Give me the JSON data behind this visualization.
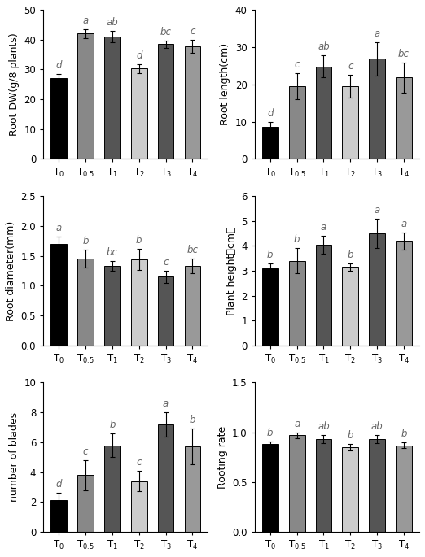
{
  "subplots": [
    {
      "ylabel": "Root DW(g/8 plants)",
      "ylim": [
        0,
        50
      ],
      "yticks": [
        0,
        10,
        20,
        30,
        40,
        50
      ],
      "values": [
        27.0,
        42.0,
        41.0,
        30.3,
        38.5,
        37.8
      ],
      "errors": [
        1.5,
        1.5,
        2.0,
        1.5,
        1.2,
        2.2
      ],
      "letters": [
        "d",
        "a",
        "ab",
        "d",
        "bc",
        "c"
      ],
      "colors": [
        "#000000",
        "#888888",
        "#555555",
        "#cccccc",
        "#555555",
        "#999999"
      ]
    },
    {
      "ylabel": "Root length(cm)",
      "ylim": [
        0,
        40
      ],
      "yticks": [
        0,
        10,
        20,
        30,
        40
      ],
      "values": [
        8.5,
        19.5,
        24.8,
        19.5,
        26.8,
        21.8
      ],
      "errors": [
        1.5,
        3.5,
        3.0,
        3.0,
        4.5,
        4.0
      ],
      "letters": [
        "d",
        "c",
        "ab",
        "c",
        "a",
        "bc"
      ],
      "colors": [
        "#000000",
        "#888888",
        "#555555",
        "#cccccc",
        "#555555",
        "#999999"
      ]
    },
    {
      "ylabel": "Root diameter(mm)",
      "ylim": [
        0.0,
        2.5
      ],
      "yticks": [
        0.0,
        0.5,
        1.0,
        1.5,
        2.0,
        2.5
      ],
      "values": [
        1.7,
        1.45,
        1.33,
        1.44,
        1.15,
        1.33
      ],
      "errors": [
        0.12,
        0.15,
        0.08,
        0.18,
        0.1,
        0.12
      ],
      "letters": [
        "a",
        "b",
        "bc",
        "b",
        "c",
        "bc"
      ],
      "colors": [
        "#000000",
        "#888888",
        "#555555",
        "#cccccc",
        "#555555",
        "#999999"
      ]
    },
    {
      "ylabel": "Plant height（cm）",
      "ylim": [
        0,
        6
      ],
      "yticks": [
        0,
        1,
        2,
        3,
        4,
        5,
        6
      ],
      "values": [
        3.1,
        3.4,
        4.05,
        3.15,
        4.5,
        4.2
      ],
      "errors": [
        0.18,
        0.5,
        0.35,
        0.15,
        0.6,
        0.35
      ],
      "letters": [
        "b",
        "b",
        "a",
        "b",
        "a",
        "a"
      ],
      "colors": [
        "#000000",
        "#888888",
        "#555555",
        "#cccccc",
        "#555555",
        "#999999"
      ]
    },
    {
      "ylabel": "number of blades",
      "ylim": [
        0,
        10
      ],
      "yticks": [
        0,
        2,
        4,
        6,
        8,
        10
      ],
      "values": [
        2.1,
        3.8,
        5.8,
        3.4,
        7.2,
        5.7
      ],
      "errors": [
        0.5,
        1.0,
        0.8,
        0.7,
        0.8,
        1.2
      ],
      "letters": [
        "d",
        "c",
        "b",
        "c",
        "a",
        "b"
      ],
      "colors": [
        "#000000",
        "#888888",
        "#555555",
        "#cccccc",
        "#555555",
        "#999999"
      ]
    },
    {
      "ylabel": "Rooting rate",
      "ylim": [
        0.0,
        1.5
      ],
      "yticks": [
        0.0,
        0.5,
        1.0,
        1.5
      ],
      "values": [
        0.88,
        0.97,
        0.93,
        0.85,
        0.93,
        0.87
      ],
      "errors": [
        0.03,
        0.03,
        0.04,
        0.03,
        0.04,
        0.03
      ],
      "letters": [
        "b",
        "a",
        "ab",
        "b",
        "ab",
        "b"
      ],
      "colors": [
        "#000000",
        "#888888",
        "#555555",
        "#cccccc",
        "#555555",
        "#999999"
      ]
    }
  ],
  "categories": [
    "T$_0$",
    "T$_{0.5}$",
    "T$_1$",
    "T$_2$",
    "T$_3$",
    "T$_4$"
  ],
  "letter_fontsize": 8.5,
  "axis_fontsize": 9,
  "tick_fontsize": 8.5
}
